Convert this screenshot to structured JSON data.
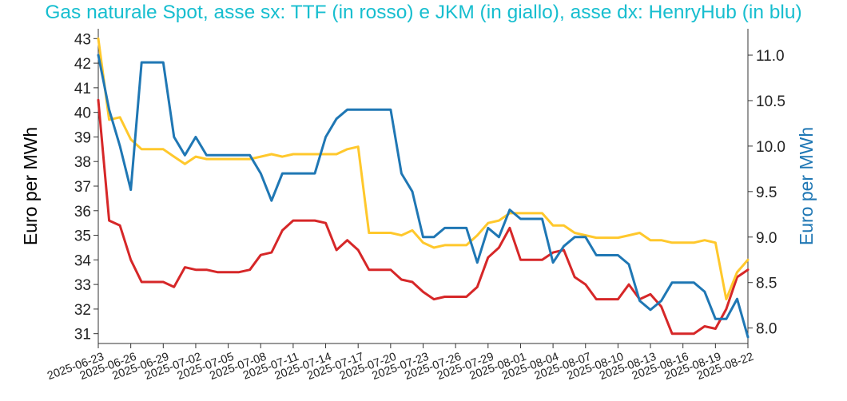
{
  "chart_data": {
    "type": "line",
    "title": "Gas naturale Spot, asse sx: TTF (in rosso) e JKM (in giallo), asse dx: HenryHub (in blu)",
    "ylabel_left": "Euro per MWh",
    "ylabel_right": "Euro per MWh",
    "ylim_left": [
      30.6,
      43.4
    ],
    "ylim_right": [
      7.83,
      11.29
    ],
    "y_ticks_left": [
      "31",
      "32",
      "33",
      "34",
      "35",
      "36",
      "37",
      "38",
      "39",
      "40",
      "41",
      "42",
      "43"
    ],
    "y_ticks_right": [
      "8.0",
      "8.5",
      "9.0",
      "9.5",
      "10.0",
      "10.5",
      "11.0"
    ],
    "grid": false,
    "legend": "none",
    "colors": {
      "title": "#17becf",
      "ttf": "#d62728",
      "jkm": "#ffc82c",
      "henryhub": "#1f77b4",
      "axis": "#333333"
    },
    "x_tick_labels": [
      "2025-06-23",
      "2025-06-26",
      "2025-06-29",
      "2025-07-02",
      "2025-07-05",
      "2025-07-08",
      "2025-07-11",
      "2025-07-14",
      "2025-07-17",
      "2025-07-20",
      "2025-07-23",
      "2025-07-26",
      "2025-07-29",
      "2025-08-01",
      "2025-08-04",
      "2025-08-07",
      "2025-08-10",
      "2025-08-13",
      "2025-08-16",
      "2025-08-19",
      "2025-08-22"
    ],
    "x_dates": [
      "2025-06-23",
      "2025-06-24",
      "2025-06-25",
      "2025-06-26",
      "2025-06-27",
      "2025-06-28",
      "2025-06-29",
      "2025-06-30",
      "2025-07-01",
      "2025-07-02",
      "2025-07-03",
      "2025-07-04",
      "2025-07-05",
      "2025-07-06",
      "2025-07-07",
      "2025-07-08",
      "2025-07-09",
      "2025-07-10",
      "2025-07-11",
      "2025-07-12",
      "2025-07-13",
      "2025-07-14",
      "2025-07-15",
      "2025-07-16",
      "2025-07-17",
      "2025-07-18",
      "2025-07-19",
      "2025-07-20",
      "2025-07-21",
      "2025-07-22",
      "2025-07-23",
      "2025-07-24",
      "2025-07-25",
      "2025-07-26",
      "2025-07-27",
      "2025-07-28",
      "2025-07-29",
      "2025-07-30",
      "2025-07-31",
      "2025-08-01",
      "2025-08-02",
      "2025-08-03",
      "2025-08-04",
      "2025-08-05",
      "2025-08-06",
      "2025-08-07",
      "2025-08-08",
      "2025-08-09",
      "2025-08-10",
      "2025-08-11",
      "2025-08-12",
      "2025-08-13",
      "2025-08-14",
      "2025-08-15",
      "2025-08-16",
      "2025-08-17",
      "2025-08-18",
      "2025-08-19",
      "2025-08-20",
      "2025-08-21",
      "2025-08-22"
    ],
    "series": [
      {
        "axis": "left",
        "color": "#d62728",
        "values": [
          40.5,
          35.6,
          35.4,
          34.0,
          33.1,
          33.1,
          33.1,
          32.9,
          33.7,
          33.6,
          33.6,
          33.5,
          33.5,
          33.5,
          33.6,
          34.2,
          34.3,
          35.2,
          35.6,
          35.6,
          35.6,
          35.5,
          34.4,
          34.8,
          34.4,
          33.6,
          33.6,
          33.6,
          33.2,
          33.1,
          32.7,
          32.4,
          32.5,
          32.5,
          32.5,
          32.9,
          34.1,
          34.5,
          35.3,
          34.0,
          34.0,
          34.0,
          34.3,
          34.4,
          33.3,
          33.0,
          32.4,
          32.4,
          32.4,
          33.0,
          32.4,
          32.6,
          32.1,
          31.0,
          31.0,
          31.0,
          31.3,
          31.2,
          32.0,
          33.3,
          33.6
        ]
      },
      {
        "axis": "left",
        "color": "#ffc82c",
        "values": [
          43.0,
          39.7,
          39.8,
          38.9,
          38.5,
          38.5,
          38.5,
          38.2,
          37.9,
          38.2,
          38.1,
          38.1,
          38.1,
          38.1,
          38.1,
          38.2,
          38.3,
          38.2,
          38.3,
          38.3,
          38.3,
          38.3,
          38.3,
          38.5,
          38.6,
          35.1,
          35.1,
          35.1,
          35.0,
          35.2,
          34.7,
          34.5,
          34.6,
          34.6,
          34.6,
          35.0,
          35.5,
          35.6,
          35.9,
          35.9,
          35.9,
          35.9,
          35.4,
          35.4,
          35.1,
          35.0,
          34.9,
          34.9,
          34.9,
          35.0,
          35.1,
          34.8,
          34.8,
          34.7,
          34.7,
          34.7,
          34.8,
          34.7,
          32.4,
          33.5,
          34.0
        ]
      },
      {
        "axis": "right",
        "color": "#1f77b4",
        "values": [
          11.0,
          10.4,
          10.0,
          9.52,
          10.92,
          10.92,
          10.92,
          10.1,
          9.9,
          10.1,
          9.9,
          9.9,
          9.9,
          9.9,
          9.9,
          9.7,
          9.4,
          9.7,
          9.7,
          9.7,
          9.7,
          10.1,
          10.3,
          10.4,
          10.4,
          10.4,
          10.4,
          10.4,
          9.7,
          9.5,
          9.0,
          9.0,
          9.1,
          9.1,
          9.1,
          8.72,
          9.1,
          9.0,
          9.3,
          9.2,
          9.2,
          9.2,
          8.72,
          8.9,
          9.0,
          9.0,
          8.8,
          8.8,
          8.8,
          8.7,
          8.3,
          8.2,
          8.3,
          8.5,
          8.5,
          8.5,
          8.4,
          8.1,
          8.1,
          8.32,
          7.9
        ]
      }
    ]
  }
}
